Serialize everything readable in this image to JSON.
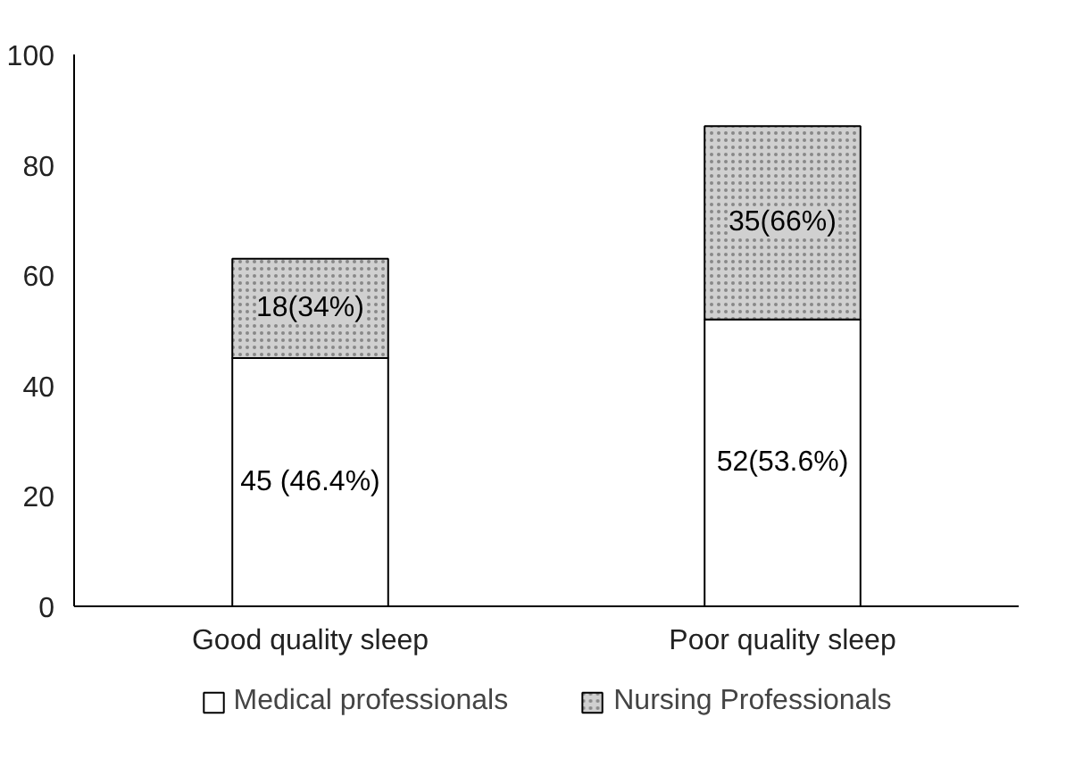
{
  "chart_data": {
    "type": "bar",
    "stacked": true,
    "categories": [
      "Good quality sleep",
      "Poor quality sleep"
    ],
    "series": [
      {
        "name": "Medical professionals",
        "color": "#ffffff",
        "values": [
          45,
          52
        ],
        "value_labels": [
          "45 (46.4%)",
          "52(53.6%)"
        ]
      },
      {
        "name": "Nursing Professionals",
        "color": "#d0d0d0",
        "values": [
          18,
          35
        ],
        "value_labels": [
          "18(34%)",
          "35(66%)"
        ]
      }
    ],
    "ylim": [
      0,
      100
    ],
    "yticks": [
      0,
      20,
      40,
      60,
      80,
      100
    ],
    "grid": false,
    "legend": "bottom"
  }
}
